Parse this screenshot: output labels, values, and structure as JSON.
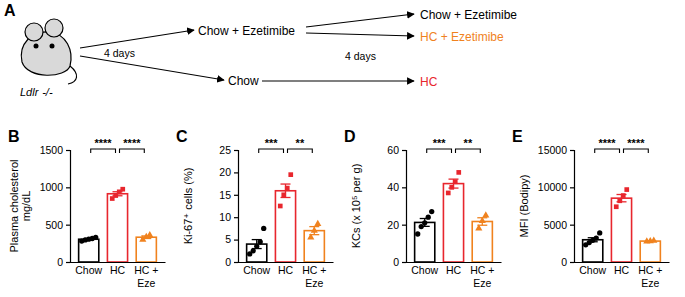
{
  "diagram": {
    "panel_label": "A",
    "mouse": {
      "gene": "Ldlr",
      "genotype": "-/-"
    },
    "stage1": {
      "duration": "4 days",
      "upper": {
        "text": "Chow + Ezetimibe",
        "color": "#000000"
      },
      "lower": {
        "text": "Chow",
        "color": "#000000"
      }
    },
    "stage2": {
      "duration": "4 days",
      "upper_branches": [
        {
          "text": "Chow + Ezetimibe",
          "color": "#000000"
        },
        {
          "text": "HC + Ezetimibe",
          "color": "#f0821e"
        }
      ],
      "lower": {
        "text": "HC",
        "color": "#e8262d"
      }
    }
  },
  "chart_data": [
    {
      "type": "bar",
      "panel_label": "B",
      "ylabel": [
        "Plasma cholesterol",
        "mg/dL"
      ],
      "categories": [
        "Chow",
        "HC",
        "HC + Eze"
      ],
      "values": [
        305,
        914,
        332
      ],
      "errors": [
        9,
        27,
        17
      ],
      "points": [
        [
          280,
          295,
          305,
          315,
          330
        ],
        [
          850,
          890,
          940,
          975
        ],
        [
          300,
          335,
          360
        ]
      ],
      "colors": [
        "#000000",
        "#e8262d",
        "#f0821e"
      ],
      "ylim": [
        0,
        1500
      ],
      "yticks": [
        0,
        500,
        1000,
        1500
      ],
      "significance": [
        {
          "from": 0,
          "to": 1,
          "label": "****"
        },
        {
          "from": 1,
          "to": 2,
          "label": "****"
        }
      ]
    },
    {
      "type": "bar",
      "panel_label": "C",
      "ylabel": [
        "Ki-67⁺ cells (%)"
      ],
      "categories": [
        "Chow",
        "HC",
        "HC + Eze"
      ],
      "values": [
        4.0,
        15.9,
        7.0
      ],
      "errors": [
        1.0,
        1.5,
        0.9
      ],
      "points": [
        [
          1.8,
          2.5,
          3.5,
          4.5,
          7.5
        ],
        [
          12.5,
          15,
          16.5,
          19.5
        ],
        [
          5.5,
          7,
          8.5
        ]
      ],
      "colors": [
        "#000000",
        "#e8262d",
        "#f0821e"
      ],
      "ylim": [
        0,
        25
      ],
      "yticks": [
        0,
        5,
        10,
        15,
        20,
        25
      ],
      "significance": [
        {
          "from": 0,
          "to": 1,
          "label": "***"
        },
        {
          "from": 1,
          "to": 2,
          "label": "**"
        }
      ]
    },
    {
      "type": "bar",
      "panel_label": "D",
      "ylabel": [
        "KCs (x 10⁵ per g)"
      ],
      "categories": [
        "Chow",
        "HC",
        "HC + Eze"
      ],
      "values": [
        21.2,
        42,
        21.7
      ],
      "errors": [
        2.1,
        2.4,
        2.0
      ],
      "points": [
        [
          15,
          19,
          21,
          24,
          27
        ],
        [
          37,
          40,
          43,
          48
        ],
        [
          18,
          22,
          25
        ]
      ],
      "colors": [
        "#000000",
        "#e8262d",
        "#f0821e"
      ],
      "ylim": [
        0,
        60
      ],
      "yticks": [
        0,
        20,
        40,
        60
      ],
      "significance": [
        {
          "from": 0,
          "to": 1,
          "label": "***"
        },
        {
          "from": 1,
          "to": 2,
          "label": "**"
        }
      ]
    },
    {
      "type": "bar",
      "panel_label": "E",
      "ylabel": [
        "MFI (Bodipy)"
      ],
      "categories": [
        "Chow",
        "HC",
        "HC + Eze"
      ],
      "values": [
        2980,
        8550,
        2800
      ],
      "errors": [
        270,
        490,
        30
      ],
      "points": [
        [
          2300,
          2600,
          2900,
          3200,
          3900
        ],
        [
          7400,
          8200,
          8900,
          9700
        ],
        [
          2750,
          2800,
          2850
        ]
      ],
      "colors": [
        "#000000",
        "#e8262d",
        "#f0821e"
      ],
      "ylim": [
        0,
        15000
      ],
      "yticks": [
        0,
        5000,
        10000,
        15000
      ],
      "significance": [
        {
          "from": 0,
          "to": 1,
          "label": "****"
        },
        {
          "from": 1,
          "to": 2,
          "label": "****"
        }
      ]
    }
  ]
}
